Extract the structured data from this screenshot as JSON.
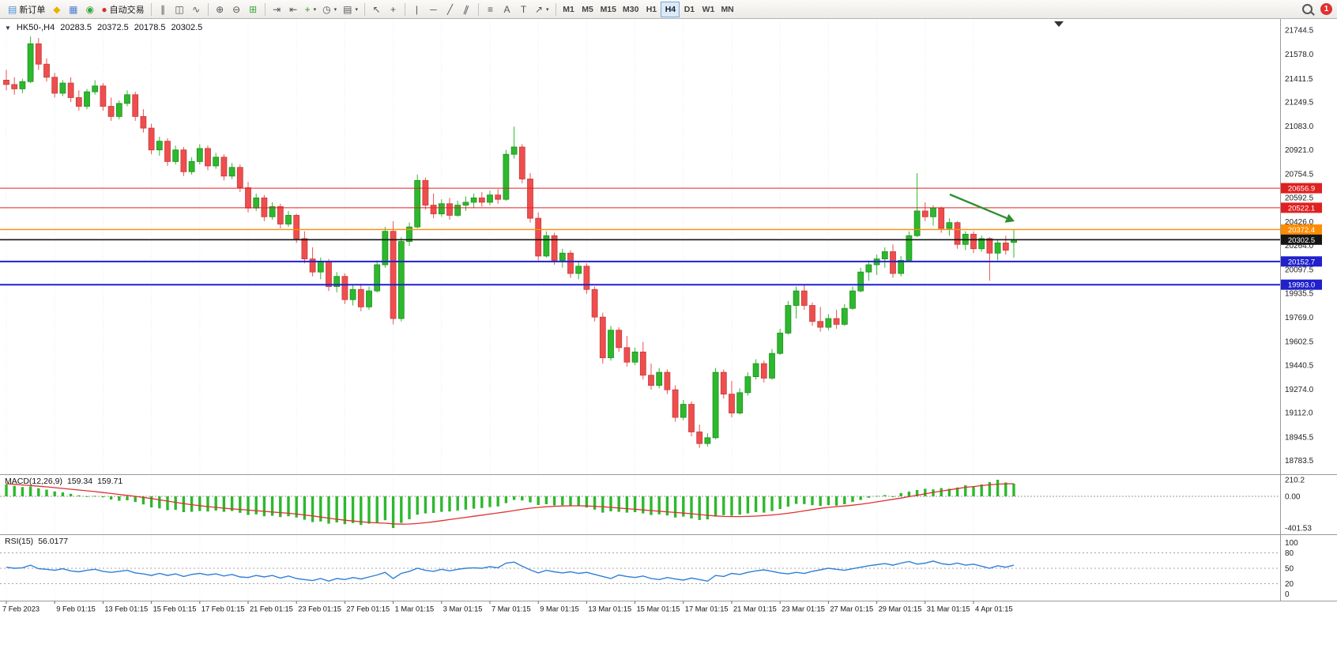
{
  "toolbar": {
    "notification_badge": "1",
    "buttons": [
      {
        "name": "new-order-button",
        "glyph": "▤",
        "glyph_color": "#4a90d9",
        "label": "新订单"
      },
      {
        "name": "metaeditor-button",
        "glyph": "◆",
        "glyph_color": "#e6b400"
      },
      {
        "name": "market-watch-button",
        "glyph": "▦",
        "glyph_color": "#4a7fd0"
      },
      {
        "name": "strategy-tester-button",
        "glyph": "◉",
        "glyph_color": "#3aa63a"
      },
      {
        "name": "autotrading-button",
        "glyph": "●",
        "glyph_color": "#d03030",
        "label": "自动交易"
      },
      {
        "sep": true
      },
      {
        "name": "bar-chart-button",
        "glyph": "∥"
      },
      {
        "name": "candlestick-chart-button",
        "glyph": "◫"
      },
      {
        "name": "line-chart-button",
        "glyph": "∿"
      },
      {
        "sep": true
      },
      {
        "name": "zoom-in-button",
        "glyph": "⊕"
      },
      {
        "name": "zoom-out-button",
        "glyph": "⊖"
      },
      {
        "name": "tile-windows-button",
        "glyph": "⊞",
        "glyph_color": "#3aa63a"
      },
      {
        "sep": true
      },
      {
        "name": "auto-scroll-button",
        "glyph": "⇥"
      },
      {
        "name": "chart-shift-button",
        "glyph": "⇤"
      },
      {
        "name": "indicators-button",
        "glyph": "+",
        "glyph_color": "#2a9a2a",
        "caret": true
      },
      {
        "name": "periods-button",
        "glyph": "◷",
        "caret": true
      },
      {
        "name": "templates-button",
        "glyph": "▤",
        "caret": true
      },
      {
        "sep": true
      },
      {
        "name": "cursor-button",
        "glyph": "↖"
      },
      {
        "name": "crosshair-button",
        "glyph": "+"
      },
      {
        "sep": true
      },
      {
        "name": "vertical-line-button",
        "glyph": "|"
      },
      {
        "name": "horizontal-line-button",
        "glyph": "─"
      },
      {
        "name": "trendline-button",
        "glyph": "╱"
      },
      {
        "name": "equidistant-channel-button",
        "glyph": "∥",
        "rot": true
      },
      {
        "sep": true
      },
      {
        "name": "fibonacci-button",
        "glyph": "≡"
      },
      {
        "name": "text-button",
        "glyph": "A"
      },
      {
        "name": "text-label-button",
        "glyph": "T"
      },
      {
        "name": "arrows-button",
        "glyph": "↗",
        "caret": true
      },
      {
        "sep": true
      }
    ],
    "timeframes": {
      "items": [
        "M1",
        "M5",
        "M15",
        "M30",
        "H1",
        "H4",
        "D1",
        "W1",
        "MN"
      ],
      "active": "H4"
    }
  },
  "chart": {
    "header": {
      "collapse_glyph": "▼",
      "symbol_period": "HK50-,H4",
      "open": "20283.5",
      "high": "20372.5",
      "low": "20178.5",
      "close": "20302.5"
    },
    "price_axis": [
      "21744.5",
      "21578.0",
      "21411.5",
      "21249.5",
      "21083.0",
      "20921.0",
      "20754.5",
      "20592.5",
      "20426.0",
      "20264.0",
      "20097.5",
      "19935.5",
      "19769.0",
      "19602.5",
      "19440.5",
      "19274.0",
      "19112.0",
      "18945.5",
      "18783.5"
    ],
    "levels": [
      {
        "price": 20656.9,
        "label": "20656.9",
        "color": "#e02020",
        "width": 1
      },
      {
        "price": 20522.1,
        "label": "20522.1",
        "color": "#e02020",
        "width": 1
      },
      {
        "price": 20372.4,
        "label": "20372.4",
        "color": "#ff8c00",
        "width": 1.4
      },
      {
        "price": 20302.5,
        "label": "20302.5",
        "color": "#141414",
        "width": 1.6
      },
      {
        "price": 20152.7,
        "label": "20152.7",
        "color": "#2020cc",
        "width": 2
      },
      {
        "price": 19993.0,
        "label": "19993.0",
        "color": "#2020cc",
        "width": 2
      }
    ],
    "annotation_arrow": {
      "color": "#2f8f2f"
    },
    "up_color": "#2db82d",
    "down_color": "#ef4e4e",
    "up_border": "#1e8f1e",
    "down_border": "#c43c3c",
    "candles": [
      [
        21400,
        21470,
        21330,
        21370
      ],
      [
        21370,
        21420,
        21300,
        21340
      ],
      [
        21340,
        21410,
        21310,
        21390
      ],
      [
        21390,
        21700,
        21380,
        21650
      ],
      [
        21650,
        21690,
        21470,
        21510
      ],
      [
        21510,
        21550,
        21390,
        21420
      ],
      [
        21420,
        21450,
        21280,
        21310
      ],
      [
        21310,
        21400,
        21290,
        21380
      ],
      [
        21380,
        21420,
        21250,
        21280
      ],
      [
        21280,
        21330,
        21190,
        21220
      ],
      [
        21220,
        21340,
        21200,
        21320
      ],
      [
        21320,
        21400,
        21300,
        21360
      ],
      [
        21360,
        21380,
        21190,
        21220
      ],
      [
        21220,
        21280,
        21120,
        21150
      ],
      [
        21150,
        21260,
        21130,
        21240
      ],
      [
        21240,
        21330,
        21220,
        21300
      ],
      [
        21300,
        21320,
        21120,
        21150
      ],
      [
        21150,
        21200,
        21040,
        21070
      ],
      [
        21070,
        21100,
        20890,
        20920
      ],
      [
        20920,
        21010,
        20880,
        20980
      ],
      [
        20980,
        21000,
        20810,
        20840
      ],
      [
        20840,
        20950,
        20820,
        20920
      ],
      [
        20920,
        20940,
        20740,
        20770
      ],
      [
        20770,
        20870,
        20750,
        20840
      ],
      [
        20840,
        20960,
        20820,
        20930
      ],
      [
        20930,
        20950,
        20780,
        20810
      ],
      [
        20810,
        20900,
        20790,
        20870
      ],
      [
        20870,
        20890,
        20710,
        20740
      ],
      [
        20740,
        20830,
        20720,
        20800
      ],
      [
        20800,
        20820,
        20630,
        20660
      ],
      [
        20660,
        20700,
        20490,
        20520
      ],
      [
        20520,
        20620,
        20500,
        20590
      ],
      [
        20590,
        20610,
        20430,
        20460
      ],
      [
        20460,
        20560,
        20440,
        20530
      ],
      [
        20530,
        20550,
        20380,
        20410
      ],
      [
        20410,
        20500,
        20390,
        20470
      ],
      [
        20470,
        20480,
        20280,
        20310
      ],
      [
        20310,
        20360,
        20140,
        20170
      ],
      [
        20170,
        20250,
        20050,
        20080
      ],
      [
        20080,
        20180,
        20030,
        20150
      ],
      [
        20150,
        20170,
        19950,
        19980
      ],
      [
        19980,
        20080,
        19940,
        20050
      ],
      [
        20050,
        20070,
        19860,
        19890
      ],
      [
        19890,
        19990,
        19850,
        19960
      ],
      [
        19960,
        20000,
        19810,
        19840
      ],
      [
        19840,
        19980,
        19820,
        19950
      ],
      [
        19950,
        20160,
        19940,
        20130
      ],
      [
        20130,
        20390,
        20110,
        20360
      ],
      [
        20360,
        20430,
        19720,
        19760
      ],
      [
        19760,
        20320,
        19740,
        20290
      ],
      [
        20290,
        20420,
        20260,
        20390
      ],
      [
        20390,
        20750,
        20380,
        20710
      ],
      [
        20710,
        20730,
        20510,
        20540
      ],
      [
        20540,
        20620,
        20450,
        20480
      ],
      [
        20480,
        20580,
        20460,
        20550
      ],
      [
        20550,
        20590,
        20440,
        20470
      ],
      [
        20470,
        20570,
        20460,
        20540
      ],
      [
        20540,
        20600,
        20500,
        20560
      ],
      [
        20560,
        20620,
        20520,
        20590
      ],
      [
        20590,
        20630,
        20530,
        20560
      ],
      [
        20560,
        20640,
        20540,
        20610
      ],
      [
        20610,
        20650,
        20550,
        20580
      ],
      [
        20580,
        20920,
        20570,
        20890
      ],
      [
        20890,
        21080,
        20860,
        20940
      ],
      [
        20940,
        20960,
        20690,
        20720
      ],
      [
        20720,
        20760,
        20420,
        20450
      ],
      [
        20450,
        20490,
        20160,
        20190
      ],
      [
        20190,
        20360,
        20180,
        20330
      ],
      [
        20330,
        20350,
        20130,
        20160
      ],
      [
        20160,
        20240,
        20110,
        20210
      ],
      [
        20210,
        20230,
        20040,
        20070
      ],
      [
        20070,
        20150,
        20030,
        20120
      ],
      [
        20120,
        20140,
        19930,
        19960
      ],
      [
        19960,
        19980,
        19740,
        19770
      ],
      [
        19770,
        19800,
        19450,
        19490
      ],
      [
        19490,
        19710,
        19470,
        19680
      ],
      [
        19680,
        19700,
        19530,
        19560
      ],
      [
        19560,
        19640,
        19430,
        19460
      ],
      [
        19460,
        19560,
        19440,
        19530
      ],
      [
        19530,
        19600,
        19340,
        19370
      ],
      [
        19370,
        19450,
        19270,
        19300
      ],
      [
        19300,
        19420,
        19280,
        19390
      ],
      [
        19390,
        19410,
        19240,
        19270
      ],
      [
        19270,
        19300,
        19050,
        19080
      ],
      [
        19080,
        19200,
        19060,
        19170
      ],
      [
        19170,
        19190,
        18950,
        18980
      ],
      [
        18980,
        19030,
        18870,
        18900
      ],
      [
        18900,
        18970,
        18880,
        18940
      ],
      [
        18940,
        19420,
        18930,
        19390
      ],
      [
        19390,
        19410,
        19210,
        19240
      ],
      [
        19240,
        19330,
        19080,
        19110
      ],
      [
        19110,
        19280,
        19100,
        19250
      ],
      [
        19250,
        19390,
        19230,
        19360
      ],
      [
        19360,
        19480,
        19340,
        19450
      ],
      [
        19450,
        19470,
        19320,
        19350
      ],
      [
        19350,
        19550,
        19340,
        19520
      ],
      [
        19520,
        19690,
        19510,
        19660
      ],
      [
        19660,
        19880,
        19650,
        19850
      ],
      [
        19850,
        19980,
        19760,
        19950
      ],
      [
        19950,
        19990,
        19820,
        19850
      ],
      [
        19850,
        19870,
        19710,
        19740
      ],
      [
        19740,
        19840,
        19670,
        19700
      ],
      [
        19700,
        19790,
        19680,
        19760
      ],
      [
        19760,
        19820,
        19690,
        19720
      ],
      [
        19720,
        19860,
        19710,
        19830
      ],
      [
        19830,
        19980,
        19820,
        19950
      ],
      [
        19950,
        20110,
        19940,
        20080
      ],
      [
        20080,
        20160,
        20020,
        20130
      ],
      [
        20130,
        20200,
        20060,
        20170
      ],
      [
        20170,
        20250,
        20110,
        20220
      ],
      [
        20220,
        20270,
        20040,
        20070
      ],
      [
        20070,
        20190,
        20050,
        20160
      ],
      [
        20160,
        20360,
        20150,
        20330
      ],
      [
        20330,
        20760,
        20320,
        20500
      ],
      [
        20500,
        20560,
        20430,
        20460
      ],
      [
        20460,
        20540,
        20400,
        20520
      ],
      [
        20520,
        20530,
        20350,
        20380
      ],
      [
        20380,
        20450,
        20330,
        20420
      ],
      [
        20420,
        20430,
        20240,
        20270
      ],
      [
        20270,
        20360,
        20230,
        20340
      ],
      [
        20340,
        20360,
        20210,
        20240
      ],
      [
        20240,
        20330,
        20220,
        20310
      ],
      [
        20310,
        20320,
        20020,
        20210
      ],
      [
        20210,
        20300,
        20160,
        20280
      ],
      [
        20280,
        20330,
        20200,
        20230
      ],
      [
        20283.5,
        20372.5,
        20178.5,
        20302.5
      ]
    ]
  },
  "macd": {
    "label": "MACD(12,26,9)",
    "value_main": "159.34",
    "value_signal": "159.71",
    "hist_color": "#2db82d",
    "signal_color": "#e03030",
    "axis": [
      {
        "label": "210.2",
        "value": 210.2
      },
      {
        "label": "0.00",
        "value": 0
      },
      {
        "label": "-401.53",
        "value": -401.53
      }
    ],
    "histogram": [
      150,
      132,
      118,
      126,
      102,
      84,
      62,
      50,
      32,
      12,
      2,
      6,
      -12,
      -40,
      -56,
      -50,
      -72,
      -102,
      -140,
      -152,
      -176,
      -172,
      -200,
      -196,
      -186,
      -192,
      -180,
      -196,
      -186,
      -208,
      -236,
      -228,
      -252,
      -246,
      -262,
      -252,
      -268,
      -296,
      -326,
      -318,
      -346,
      -330,
      -352,
      -338,
      -362,
      -346,
      -330,
      -302,
      -401,
      -336,
      -290,
      -232,
      -216,
      -210,
      -196,
      -192,
      -180,
      -168,
      -156,
      -148,
      -136,
      -128,
      -86,
      -46,
      -52,
      -76,
      -110,
      -100,
      -116,
      -112,
      -126,
      -122,
      -142,
      -168,
      -206,
      -190,
      -196,
      -206,
      -200,
      -216,
      -236,
      -228,
      -242,
      -268,
      -256,
      -280,
      -300,
      -292,
      -256,
      -238,
      -246,
      -232,
      -216,
      -200,
      -206,
      -186,
      -160,
      -130,
      -96,
      -98,
      -112,
      -120,
      -112,
      -118,
      -100,
      -72,
      -46,
      -18,
      6,
      16,
      -4,
      42,
      60,
      80,
      96,
      88,
      104,
      96,
      112,
      140,
      130,
      150,
      180,
      210,
      175,
      159.34
    ],
    "signal": [
      160,
      152,
      144,
      136,
      128,
      120,
      110,
      100,
      90,
      80,
      70,
      60,
      48,
      36,
      24,
      12,
      0,
      -14,
      -28,
      -44,
      -60,
      -76,
      -92,
      -106,
      -118,
      -130,
      -140,
      -150,
      -158,
      -166,
      -174,
      -182,
      -190,
      -198,
      -206,
      -214,
      -224,
      -236,
      -248,
      -262,
      -276,
      -290,
      -302,
      -312,
      -322,
      -330,
      -336,
      -340,
      -348,
      -352,
      -350,
      -344,
      -334,
      -322,
      -308,
      -294,
      -280,
      -266,
      -252,
      -238,
      -224,
      -210,
      -196,
      -180,
      -164,
      -150,
      -140,
      -132,
      -126,
      -122,
      -120,
      -120,
      -122,
      -126,
      -132,
      -140,
      -148,
      -156,
      -164,
      -172,
      -180,
      -188,
      -196,
      -204,
      -212,
      -220,
      -230,
      -240,
      -248,
      -254,
      -256,
      -256,
      -254,
      -250,
      -244,
      -236,
      -226,
      -214,
      -200,
      -184,
      -168,
      -152,
      -140,
      -130,
      -122,
      -112,
      -100,
      -86,
      -70,
      -54,
      -38,
      -22,
      -4,
      14,
      32,
      50,
      66,
      82,
      98,
      114,
      124,
      136,
      146,
      154,
      158,
      159.71
    ]
  },
  "rsi": {
    "label": "RSI(15)",
    "value": "56.0177",
    "line_color": "#2f7fd6",
    "axis": [
      {
        "label": "100",
        "value": 100
      },
      {
        "label": "80",
        "value": 80
      },
      {
        "label": "50",
        "value": 50
      },
      {
        "label": "20",
        "value": 20
      },
      {
        "label": "0",
        "value": 0
      }
    ],
    "levels_dashed": [
      80,
      50,
      20
    ],
    "values": [
      52,
      50,
      51,
      56,
      49,
      48,
      46,
      49,
      45,
      43,
      46,
      48,
      44,
      42,
      44,
      46,
      41,
      39,
      36,
      40,
      36,
      39,
      34,
      38,
      40,
      37,
      39,
      35,
      38,
      33,
      32,
      36,
      33,
      36,
      31,
      35,
      30,
      28,
      26,
      30,
      25,
      30,
      28,
      32,
      29,
      33,
      37,
      42,
      30,
      40,
      44,
      50,
      46,
      44,
      48,
      45,
      48,
      50,
      51,
      50,
      53,
      51,
      60,
      62,
      54,
      47,
      41,
      46,
      43,
      41,
      43,
      40,
      42,
      38,
      34,
      30,
      37,
      34,
      32,
      35,
      30,
      28,
      32,
      29,
      27,
      31,
      28,
      25,
      36,
      34,
      40,
      38,
      42,
      45,
      47,
      44,
      41,
      39,
      42,
      40,
      44,
      47,
      50,
      48,
      46,
      49,
      52,
      55,
      57,
      59,
      56,
      60,
      63,
      58,
      60,
      64,
      59,
      57,
      60,
      56,
      58,
      54,
      50,
      55,
      52,
      56.02
    ]
  },
  "timeline": {
    "labels": [
      "7 Feb 2023",
      "9 Feb 01:15",
      "13 Feb 01:15",
      "15 Feb 01:15",
      "17 Feb 01:15",
      "21 Feb 01:15",
      "23 Feb 01:15",
      "27 Feb 01:15",
      "1 Mar 01:15",
      "3 Mar 01:15",
      "7 Mar 01:15",
      "9 Mar 01:15",
      "13 Mar 01:15",
      "15 Mar 01:15",
      "17 Mar 01:15",
      "21 Mar 01:15",
      "23 Mar 01:15",
      "27 Mar 01:15",
      "29 Mar 01:15",
      "31 Mar 01:15",
      "4 Apr 01:15"
    ]
  }
}
